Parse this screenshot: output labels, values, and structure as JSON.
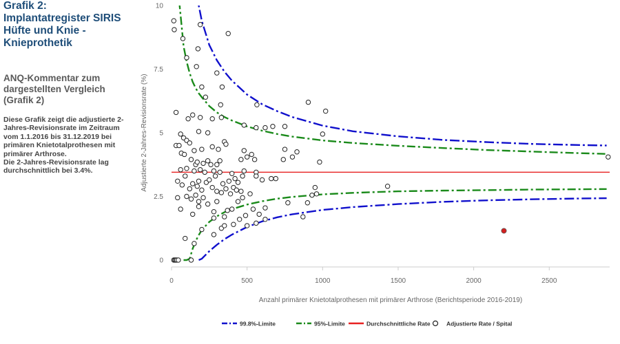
{
  "sidebar": {
    "heading": "Grafik 2:\nImplantatregister SIRIS Hüfte und Knie - Knieprothetik",
    "subheading": "ANQ-Kommentar zum dargestellten Vergleich (Grafik 2)",
    "body": "Diese Grafik zeigt die adjustierte 2-Jahres-Revisionsrate im Zeitraum vom 1.1.2016 bis 31.12.2019 bei primären Knietotalprothesen mit primärer Arthrose.\nDie 2-Jahres-Revisionsrate lag durchschnittlich bei 3.4%."
  },
  "chart_data": {
    "type": "scatter",
    "xlabel": "Anzahl primärer Knietotalprothesen mit primärer Arthrose (Berichtsperiode 2016-2019)",
    "ylabel": "Adjustierte 2-Jahres-Revisionsrate (%)",
    "xlim": [
      0,
      2900
    ],
    "ylim": [
      0,
      10
    ],
    "xticks": [
      0,
      500,
      1000,
      1500,
      2000,
      2500
    ],
    "xtick_labels": [
      "0",
      "500",
      "1000",
      "1500",
      "2000",
      "2500"
    ],
    "yticks": [
      0,
      2.5,
      5,
      7.5,
      10
    ],
    "ytick_labels": [
      "0",
      "2.5",
      "5",
      "7.5",
      "10"
    ],
    "grid": false,
    "legend_position": "bottom",
    "mean_rate": 3.45,
    "colors": {
      "limit998": "#1010cc",
      "limit95": "#1a8a1a",
      "mean": "#e82020",
      "highlight": "#d42020",
      "hospital": "#222222"
    },
    "legend": [
      {
        "key": "limit998",
        "label": "99.8%-Limite"
      },
      {
        "key": "limit95",
        "label": "95%-Limite"
      },
      {
        "key": "mean",
        "label": "Durchschnittliche Rate"
      },
      {
        "key": "hospital",
        "label": "Adjustierte Rate / Spital"
      }
    ],
    "limits": {
      "x": [
        40,
        60,
        80,
        100,
        120,
        140,
        160,
        180,
        200,
        250,
        300,
        350,
        400,
        500,
        600,
        700,
        800,
        1000,
        1200,
        1500,
        1800,
        2100,
        2400,
        2700,
        2880
      ],
      "upper95": [
        10.8,
        9.6,
        8.4,
        7.8,
        7.35,
        7.0,
        6.75,
        6.55,
        6.4,
        6.05,
        5.8,
        5.62,
        5.48,
        5.25,
        5.08,
        4.95,
        4.85,
        4.7,
        4.6,
        4.49,
        4.4,
        4.32,
        4.26,
        4.2,
        4.17
      ],
      "lower95": [
        null,
        null,
        0.0,
        0.0,
        0.05,
        0.45,
        0.75,
        0.98,
        1.18,
        1.5,
        1.72,
        1.88,
        2.0,
        2.18,
        2.31,
        2.41,
        2.48,
        2.58,
        2.64,
        2.7,
        2.73,
        2.75,
        2.77,
        2.78,
        2.79
      ],
      "upper998": [
        null,
        null,
        null,
        null,
        12.5,
        11.4,
        10.6,
        10.0,
        9.4,
        8.45,
        7.85,
        7.4,
        7.05,
        6.5,
        6.12,
        5.85,
        5.62,
        5.28,
        5.06,
        4.86,
        4.72,
        4.63,
        4.56,
        4.52,
        4.5
      ],
      "lower998": [
        null,
        null,
        null,
        null,
        null,
        null,
        null,
        0.0,
        0.05,
        0.35,
        0.6,
        0.82,
        1.0,
        1.3,
        1.52,
        1.68,
        1.8,
        1.97,
        2.08,
        2.2,
        2.29,
        2.35,
        2.39,
        2.42,
        2.43
      ]
    },
    "highlight_point": {
      "x": 2200,
      "y": 1.15
    },
    "points": [
      {
        "x": 15,
        "y": 0
      },
      {
        "x": 22,
        "y": 0
      },
      {
        "x": 28,
        "y": 0
      },
      {
        "x": 35,
        "y": 0
      },
      {
        "x": 45,
        "y": 0
      },
      {
        "x": 130,
        "y": 0
      },
      {
        "x": 15,
        "y": 9.4
      },
      {
        "x": 18,
        "y": 9.05
      },
      {
        "x": 75,
        "y": 8.7
      },
      {
        "x": 190,
        "y": 9.25
      },
      {
        "x": 175,
        "y": 8.3
      },
      {
        "x": 375,
        "y": 8.9
      },
      {
        "x": 100,
        "y": 7.95
      },
      {
        "x": 165,
        "y": 7.6
      },
      {
        "x": 200,
        "y": 6.8
      },
      {
        "x": 300,
        "y": 7.35
      },
      {
        "x": 335,
        "y": 6.8
      },
      {
        "x": 225,
        "y": 6.4
      },
      {
        "x": 325,
        "y": 6.1
      },
      {
        "x": 565,
        "y": 6.1
      },
      {
        "x": 905,
        "y": 6.2
      },
      {
        "x": 1020,
        "y": 5.85
      },
      {
        "x": 30,
        "y": 5.8
      },
      {
        "x": 140,
        "y": 5.7
      },
      {
        "x": 190,
        "y": 5.6
      },
      {
        "x": 110,
        "y": 5.55
      },
      {
        "x": 270,
        "y": 5.55
      },
      {
        "x": 330,
        "y": 5.6
      },
      {
        "x": 480,
        "y": 5.3
      },
      {
        "x": 560,
        "y": 5.2
      },
      {
        "x": 620,
        "y": 5.2
      },
      {
        "x": 670,
        "y": 5.25
      },
      {
        "x": 750,
        "y": 5.25
      },
      {
        "x": 1000,
        "y": 4.95
      },
      {
        "x": 60,
        "y": 4.95
      },
      {
        "x": 80,
        "y": 4.8
      },
      {
        "x": 100,
        "y": 4.7
      },
      {
        "x": 120,
        "y": 4.6
      },
      {
        "x": 180,
        "y": 5.05
      },
      {
        "x": 240,
        "y": 5.0
      },
      {
        "x": 270,
        "y": 4.45
      },
      {
        "x": 350,
        "y": 4.65
      },
      {
        "x": 360,
        "y": 4.55
      },
      {
        "x": 310,
        "y": 4.35
      },
      {
        "x": 480,
        "y": 4.3
      },
      {
        "x": 500,
        "y": 4.05
      },
      {
        "x": 530,
        "y": 4.15
      },
      {
        "x": 550,
        "y": 3.95
      },
      {
        "x": 750,
        "y": 4.35
      },
      {
        "x": 800,
        "y": 4.05
      },
      {
        "x": 830,
        "y": 4.25
      },
      {
        "x": 740,
        "y": 3.95
      },
      {
        "x": 980,
        "y": 3.85
      },
      {
        "x": 30,
        "y": 4.5
      },
      {
        "x": 50,
        "y": 4.5
      },
      {
        "x": 65,
        "y": 4.2
      },
      {
        "x": 85,
        "y": 4.15
      },
      {
        "x": 150,
        "y": 4.3
      },
      {
        "x": 200,
        "y": 4.35
      },
      {
        "x": 130,
        "y": 3.95
      },
      {
        "x": 160,
        "y": 3.75
      },
      {
        "x": 170,
        "y": 3.85
      },
      {
        "x": 210,
        "y": 3.8
      },
      {
        "x": 240,
        "y": 3.9
      },
      {
        "x": 260,
        "y": 3.75
      },
      {
        "x": 300,
        "y": 3.75
      },
      {
        "x": 320,
        "y": 3.9
      },
      {
        "x": 460,
        "y": 3.95
      },
      {
        "x": 60,
        "y": 3.55
      },
      {
        "x": 100,
        "y": 3.6
      },
      {
        "x": 150,
        "y": 3.5
      },
      {
        "x": 190,
        "y": 3.55
      },
      {
        "x": 220,
        "y": 3.45
      },
      {
        "x": 280,
        "y": 3.5
      },
      {
        "x": 320,
        "y": 3.45
      },
      {
        "x": 400,
        "y": 3.4
      },
      {
        "x": 480,
        "y": 3.5
      },
      {
        "x": 560,
        "y": 3.45
      },
      {
        "x": 560,
        "y": 3.3
      },
      {
        "x": 660,
        "y": 3.2
      },
      {
        "x": 690,
        "y": 3.2
      },
      {
        "x": 40,
        "y": 3.1
      },
      {
        "x": 90,
        "y": 3.3
      },
      {
        "x": 140,
        "y": 3.0
      },
      {
        "x": 180,
        "y": 3.1
      },
      {
        "x": 230,
        "y": 3.05
      },
      {
        "x": 250,
        "y": 3.15
      },
      {
        "x": 290,
        "y": 3.3
      },
      {
        "x": 340,
        "y": 3.0
      },
      {
        "x": 380,
        "y": 3.1
      },
      {
        "x": 420,
        "y": 3.2
      },
      {
        "x": 440,
        "y": 3.05
      },
      {
        "x": 470,
        "y": 3.3
      },
      {
        "x": 600,
        "y": 3.15
      },
      {
        "x": 70,
        "y": 2.95
      },
      {
        "x": 120,
        "y": 2.8
      },
      {
        "x": 170,
        "y": 2.9
      },
      {
        "x": 200,
        "y": 2.75
      },
      {
        "x": 270,
        "y": 2.85
      },
      {
        "x": 300,
        "y": 2.7
      },
      {
        "x": 330,
        "y": 2.65
      },
      {
        "x": 360,
        "y": 2.8
      },
      {
        "x": 390,
        "y": 2.6
      },
      {
        "x": 410,
        "y": 2.85
      },
      {
        "x": 430,
        "y": 2.75
      },
      {
        "x": 460,
        "y": 2.7
      },
      {
        "x": 470,
        "y": 2.45
      },
      {
        "x": 520,
        "y": 2.6
      },
      {
        "x": 950,
        "y": 2.85
      },
      {
        "x": 1430,
        "y": 2.9
      },
      {
        "x": 40,
        "y": 2.45
      },
      {
        "x": 100,
        "y": 2.5
      },
      {
        "x": 130,
        "y": 2.4
      },
      {
        "x": 160,
        "y": 2.55
      },
      {
        "x": 180,
        "y": 2.3
      },
      {
        "x": 210,
        "y": 2.45
      },
      {
        "x": 240,
        "y": 2.2
      },
      {
        "x": 300,
        "y": 2.3
      },
      {
        "x": 440,
        "y": 2.3
      },
      {
        "x": 540,
        "y": 2.0
      },
      {
        "x": 620,
        "y": 2.05
      },
      {
        "x": 770,
        "y": 2.25
      },
      {
        "x": 900,
        "y": 2.25
      },
      {
        "x": 930,
        "y": 2.55
      },
      {
        "x": 960,
        "y": 2.6
      },
      {
        "x": 60,
        "y": 2.0
      },
      {
        "x": 140,
        "y": 1.8
      },
      {
        "x": 180,
        "y": 2.1
      },
      {
        "x": 280,
        "y": 1.9
      },
      {
        "x": 350,
        "y": 1.7
      },
      {
        "x": 370,
        "y": 1.95
      },
      {
        "x": 400,
        "y": 2.0
      },
      {
        "x": 490,
        "y": 1.75
      },
      {
        "x": 580,
        "y": 1.8
      },
      {
        "x": 620,
        "y": 1.6
      },
      {
        "x": 280,
        "y": 1.65
      },
      {
        "x": 410,
        "y": 1.4
      },
      {
        "x": 450,
        "y": 1.6
      },
      {
        "x": 500,
        "y": 1.35
      },
      {
        "x": 560,
        "y": 1.45
      },
      {
        "x": 870,
        "y": 1.7
      },
      {
        "x": 90,
        "y": 0.85
      },
      {
        "x": 150,
        "y": 0.65
      },
      {
        "x": 200,
        "y": 1.2
      },
      {
        "x": 280,
        "y": 1.0
      },
      {
        "x": 330,
        "y": 1.25
      },
      {
        "x": 350,
        "y": 1.35
      },
      {
        "x": 2890,
        "y": 4.05
      }
    ]
  }
}
